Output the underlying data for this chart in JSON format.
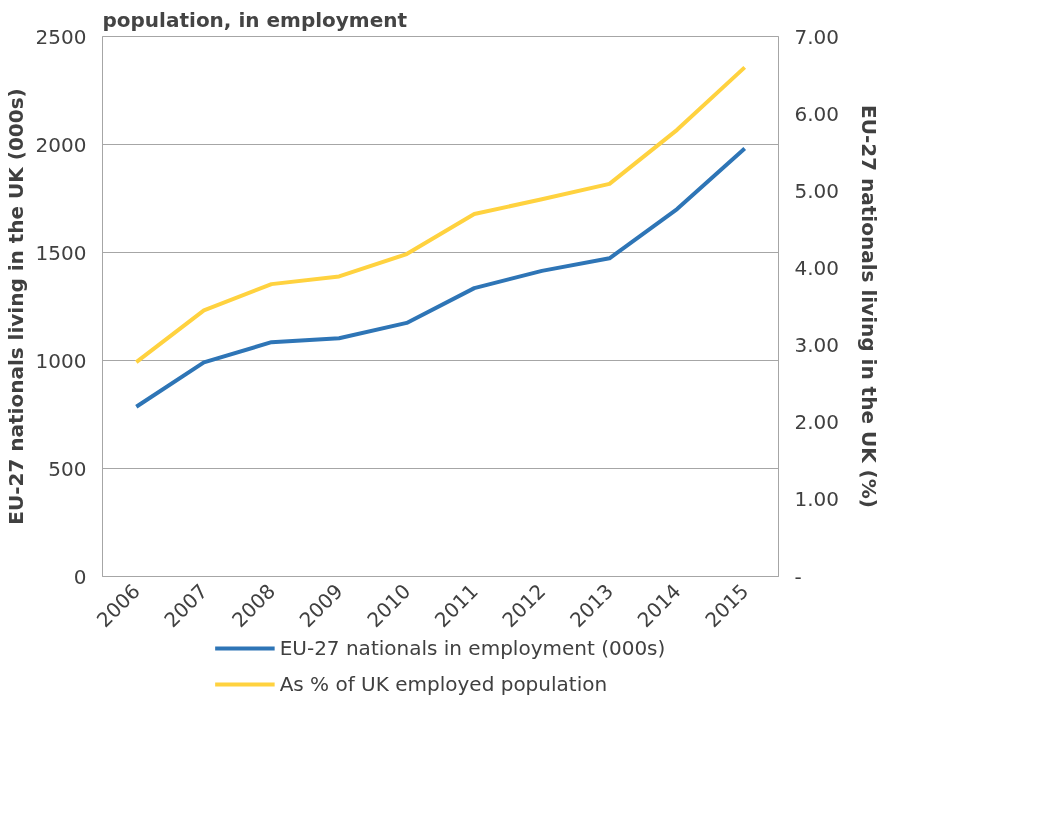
{
  "chart_data": {
    "type": "line",
    "title": "population, in employment",
    "categories": [
      "2006",
      "2007",
      "2008",
      "2009",
      "2010",
      "2011",
      "2012",
      "2013",
      "2014",
      "2015"
    ],
    "series": [
      {
        "name": "EU-27 nationals in employment (000s)",
        "color": "#2e75b6",
        "values": [
          786,
          991,
          1085,
          1103,
          1174,
          1335,
          1415,
          1473,
          1701,
          1982
        ]
      },
      {
        "name": "As % of UK employed population",
        "color": "#ffd23f",
        "axis": "y2",
        "values": [
          2.78,
          3.45,
          3.79,
          3.89,
          4.18,
          4.7,
          4.89,
          5.09,
          5.79,
          6.6
        ]
      }
    ],
    "ylabel": "EU-27 nationals living in the UK (000s)",
    "y2label": "EU-27 nationals living in the UK (%)",
    "ylim": [
      0,
      2500
    ],
    "yticks": [
      0,
      500,
      1000,
      1500,
      2000,
      2500
    ],
    "y2lim": [
      0,
      7
    ],
    "y2ticks": [
      {
        "value": 0,
        "label": "-"
      },
      {
        "value": 1,
        "label": "1.00"
      },
      {
        "value": 2,
        "label": "2.00"
      },
      {
        "value": 3,
        "label": "3.00"
      },
      {
        "value": 4,
        "label": "4.00"
      },
      {
        "value": 5,
        "label": "5.00"
      },
      {
        "value": 6,
        "label": "6.00"
      },
      {
        "value": 7,
        "label": "7.00"
      }
    ],
    "grid": "y",
    "legend": "bottom",
    "marker": "none",
    "line_style": "solid"
  }
}
